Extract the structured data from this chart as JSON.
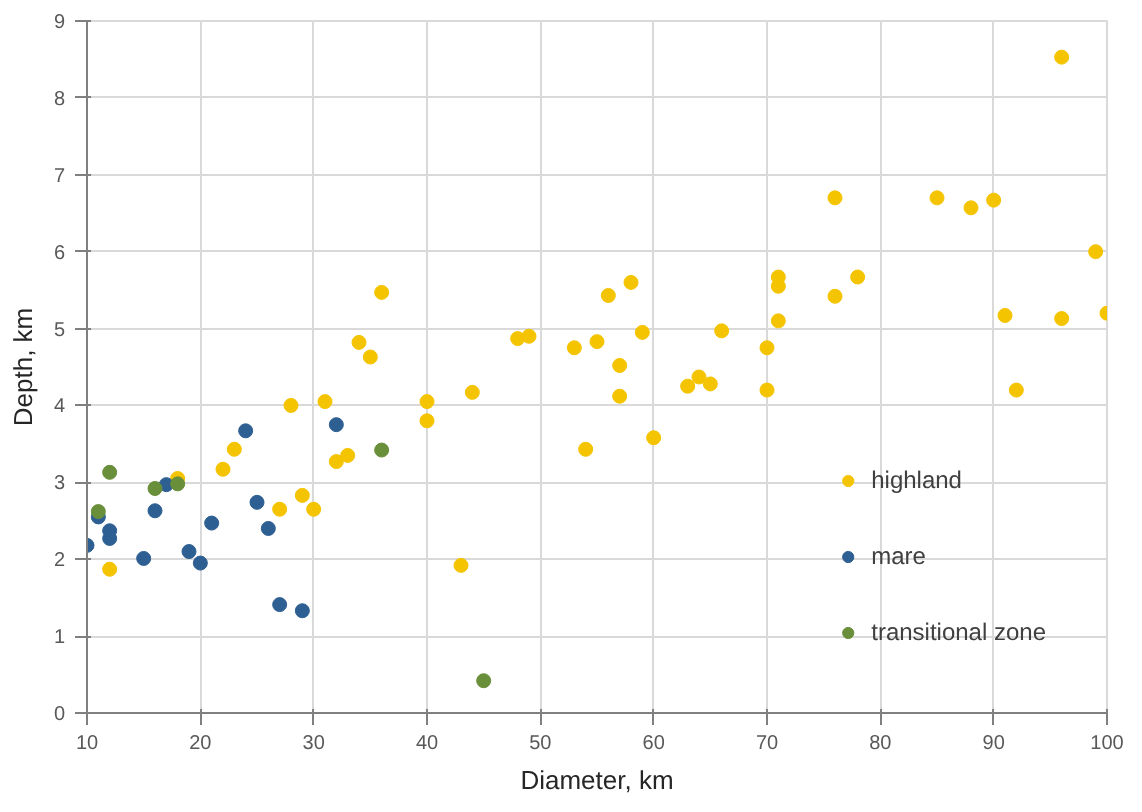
{
  "chart_data": {
    "type": "scatter",
    "xlabel": "Diameter, km",
    "ylabel": "Depth, km",
    "xlim": [
      10,
      100
    ],
    "ylim": [
      0,
      9
    ],
    "xticks": [
      10,
      20,
      30,
      40,
      50,
      60,
      70,
      80,
      90,
      100
    ],
    "yticks": [
      0,
      1,
      2,
      3,
      4,
      5,
      6,
      7,
      8,
      9
    ],
    "grid": true,
    "legend": "bottom right",
    "marker": "circle",
    "series": [
      {
        "name": "highland",
        "color": "#f5c400",
        "x": [
          12,
          18,
          22,
          23,
          27,
          28,
          29,
          30,
          31,
          32,
          33,
          34,
          35,
          36,
          40,
          40,
          43,
          44,
          48,
          49,
          53,
          54,
          55,
          56,
          57,
          57,
          58,
          59,
          60,
          63,
          64,
          65,
          66,
          70,
          70,
          71,
          71,
          71,
          76,
          76,
          78,
          85,
          88,
          90,
          91,
          92,
          96,
          96,
          99,
          100
        ],
        "values": [
          1.87,
          3.05,
          3.17,
          3.43,
          2.65,
          4.0,
          2.83,
          2.65,
          4.05,
          3.27,
          3.35,
          4.82,
          4.63,
          5.47,
          4.05,
          3.8,
          1.92,
          4.17,
          4.87,
          4.9,
          4.75,
          3.43,
          4.83,
          5.43,
          4.52,
          4.12,
          5.6,
          4.95,
          3.58,
          4.25,
          4.37,
          4.28,
          4.97,
          4.75,
          4.2,
          5.55,
          5.67,
          5.1,
          6.7,
          5.42,
          5.67,
          6.7,
          6.57,
          6.67,
          5.17,
          4.2,
          8.53,
          5.13,
          6.0,
          5.2
        ]
      },
      {
        "name": "mare",
        "color": "#2e5f92",
        "x": [
          10,
          11,
          12,
          12,
          15,
          16,
          17,
          19,
          20,
          21,
          24,
          25,
          26,
          27,
          29,
          32
        ],
        "values": [
          2.18,
          2.55,
          2.37,
          2.27,
          2.01,
          2.63,
          2.97,
          2.1,
          1.95,
          2.47,
          3.67,
          2.74,
          2.4,
          1.41,
          1.33,
          3.75
        ]
      },
      {
        "name": "transitional zone",
        "color": "#6a8f3a",
        "x": [
          11,
          12,
          16,
          18,
          36,
          45
        ],
        "values": [
          2.62,
          3.13,
          2.92,
          2.98,
          3.42,
          0.42
        ]
      }
    ]
  }
}
